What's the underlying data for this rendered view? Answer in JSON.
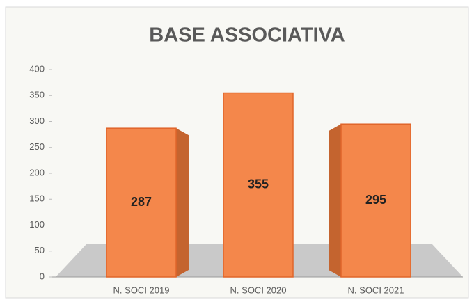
{
  "chart_data": {
    "type": "bar",
    "title": "BASE ASSOCIATIVA",
    "categories": [
      "N. SOCI 2019",
      "N. SOCI 2020",
      "N. SOCI 2021"
    ],
    "values": [
      287,
      355,
      295
    ],
    "color": "#f4874b",
    "ylim": [
      0,
      400
    ],
    "yticks": [
      0,
      50,
      100,
      150,
      200,
      250,
      300,
      350,
      400
    ],
    "grid": false
  }
}
